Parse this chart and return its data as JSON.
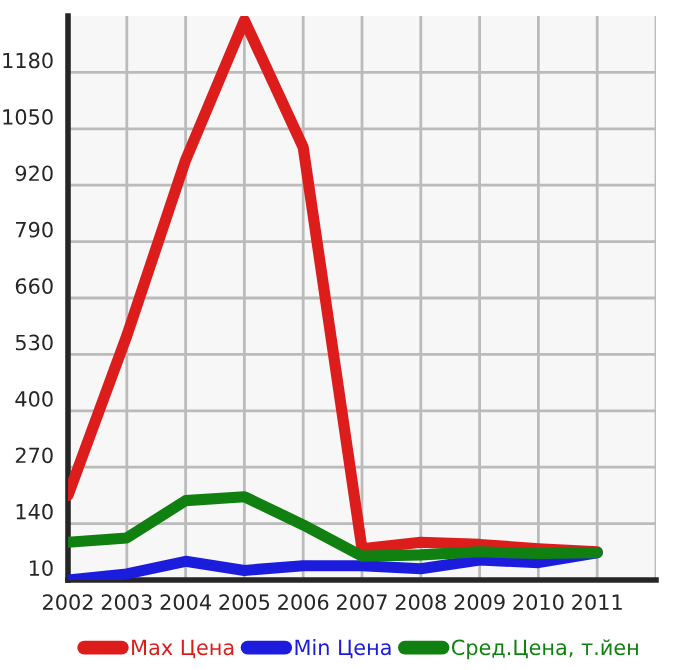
{
  "chart_data": {
    "type": "line",
    "x": [
      2002,
      2003,
      2004,
      2005,
      2006,
      2007,
      2008,
      2009,
      2010,
      2011
    ],
    "series": [
      {
        "name": "Max Цена",
        "color": "#dd1c1c",
        "values": [
          205,
          573,
          978,
          1300,
          1007,
          82,
          97,
          92,
          82,
          75
        ]
      },
      {
        "name": "Min Цена",
        "color": "#1c1cdd",
        "values": [
          10,
          24,
          53,
          32,
          43,
          43,
          36,
          56,
          50,
          73
        ]
      },
      {
        "name": "Сред.Цена, т.йен",
        "color": "#108010",
        "values": [
          97,
          107,
          193,
          202,
          137,
          65,
          68,
          75,
          71,
          73
        ]
      }
    ],
    "xlim": [
      2002,
      2012
    ],
    "xticks": [
      2002,
      2003,
      2004,
      2005,
      2006,
      2007,
      2008,
      2009,
      2010,
      2011,
      {
        "value": 2012,
        "label": null
      }
    ],
    "ylim": [
      10,
      1310
    ],
    "yticks": [
      10,
      140,
      270,
      400,
      530,
      660,
      790,
      920,
      1050,
      1180
    ],
    "grid": true,
    "legend": "bottom",
    "marker": "none",
    "line_style": "solid"
  }
}
